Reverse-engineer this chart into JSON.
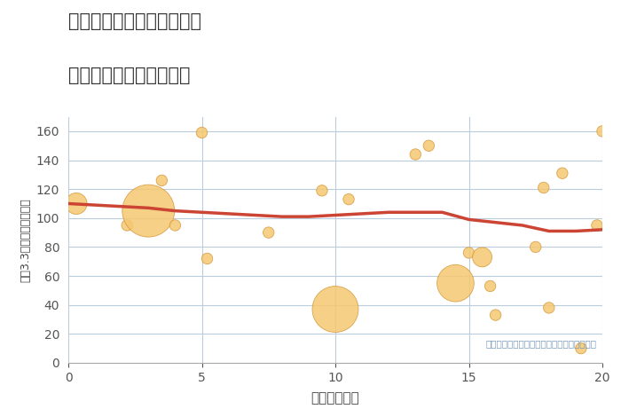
{
  "title_line1": "大阪府高槻市奈佐原元町の",
  "title_line2": "駅距離別中古戸建て価格",
  "xlabel": "駅距離（分）",
  "ylabel": "坪（3.3㎡）単価（万円）",
  "xlim": [
    0,
    20
  ],
  "ylim": [
    0,
    170
  ],
  "xticks": [
    0,
    5,
    10,
    15,
    20
  ],
  "yticks": [
    0,
    20,
    40,
    60,
    80,
    100,
    120,
    140,
    160
  ],
  "annotation": "円の大きさは、取引のあった物件面積を示す",
  "bubble_color": "#F5C871",
  "bubble_edge_color": "#D4983A",
  "line_color": "#CC4433",
  "grid_color": "#BBCCDD",
  "background_color": "#FFFFFF",
  "scatter_x": [
    0.3,
    2.2,
    3.0,
    3.5,
    4.0,
    5.0,
    5.2,
    7.5,
    9.5,
    10.0,
    10.5,
    13.0,
    13.5,
    14.5,
    15.0,
    15.5,
    15.8,
    16.0,
    17.5,
    17.8,
    18.0,
    18.5,
    19.2,
    19.8,
    20.0
  ],
  "scatter_y": [
    110,
    95,
    105,
    126,
    95,
    159,
    72,
    90,
    119,
    37,
    113,
    144,
    150,
    55,
    76,
    73,
    53,
    33,
    80,
    121,
    38,
    131,
    10,
    95,
    160
  ],
  "scatter_size": [
    300,
    80,
    1800,
    80,
    80,
    80,
    80,
    80,
    80,
    1400,
    80,
    80,
    80,
    900,
    80,
    250,
    80,
    80,
    80,
    80,
    80,
    80,
    80,
    80,
    80
  ],
  "line_x": [
    0,
    1,
    2,
    3,
    4,
    5,
    6,
    7,
    8,
    9,
    10,
    11,
    12,
    13,
    14,
    15,
    16,
    17,
    18,
    19,
    20
  ],
  "line_y": [
    110,
    109,
    108,
    107,
    105,
    104,
    103,
    102,
    101,
    101,
    102,
    103,
    104,
    104,
    104,
    99,
    97,
    95,
    91,
    91,
    92
  ]
}
